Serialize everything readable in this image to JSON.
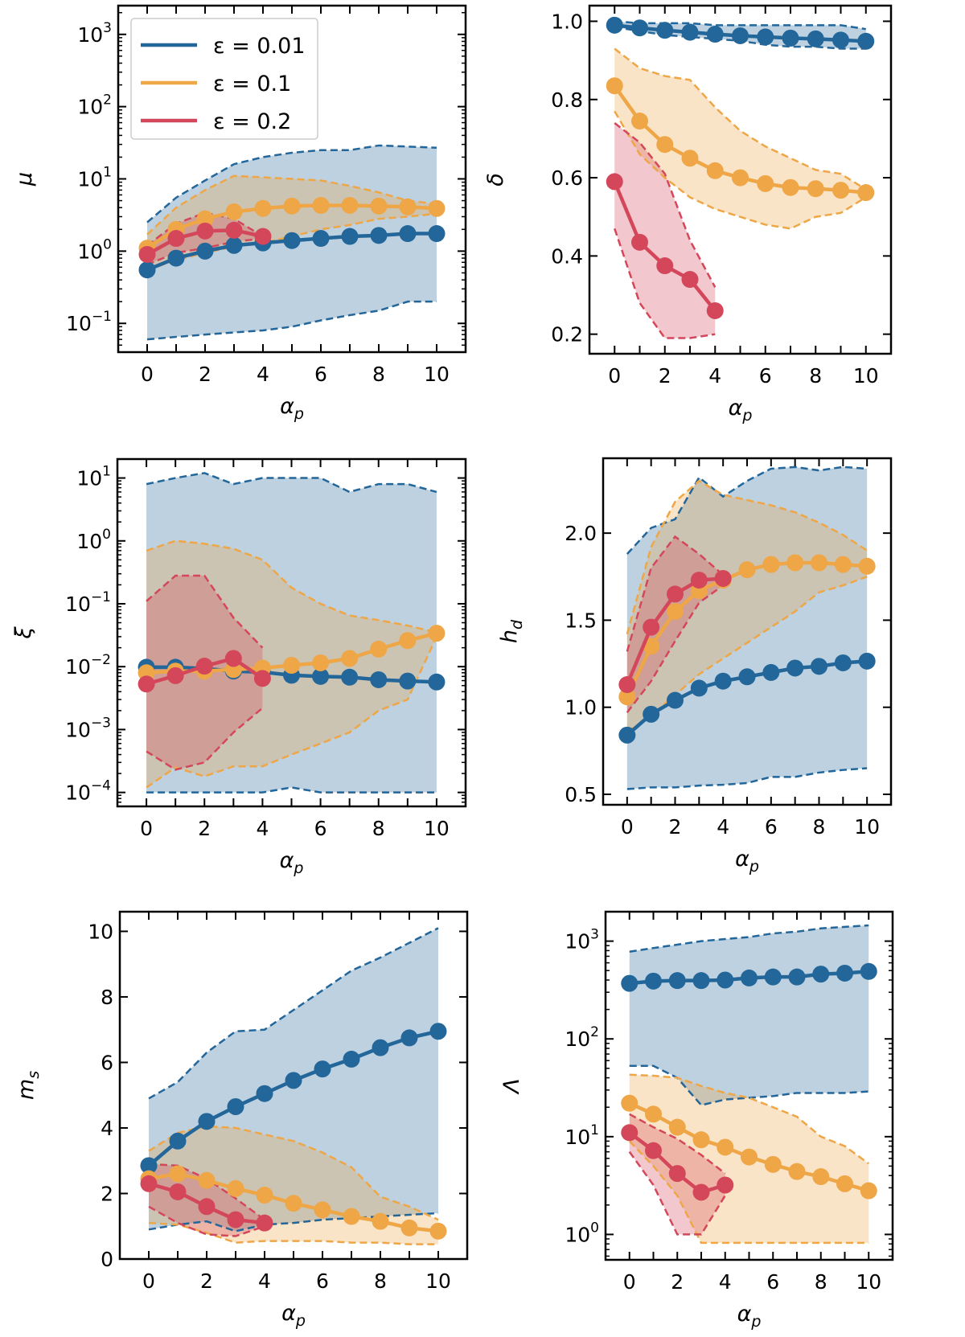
{
  "figure": {
    "series_legend": [
      {
        "label": "ε = 0.01",
        "color": "#23669a"
      },
      {
        "label": "ε = 0.1",
        "color": "#eea646"
      },
      {
        "label": "ε = 0.2",
        "color": "#d4475b"
      }
    ],
    "legend_location": "upper-left of first panel"
  },
  "chart_data": [
    {
      "id": "mu",
      "type": "line",
      "title": "",
      "xlabel": "α_p",
      "ylabel": "μ",
      "yscale": "log",
      "xlim": [
        -1,
        11
      ],
      "ylim": [
        0.04,
        2500
      ],
      "xticks": [
        0,
        2,
        4,
        6,
        8,
        10
      ],
      "xtick_labels": [
        "0",
        "2",
        "4",
        "6",
        "8",
        "10"
      ],
      "yticks": [
        0.1,
        1,
        10,
        100,
        1000
      ],
      "ytick_labels": [
        [
          "10",
          "−1"
        ],
        [
          "10",
          "0"
        ],
        [
          "10",
          "1"
        ],
        [
          "10",
          "2"
        ],
        [
          "10",
          "3"
        ]
      ],
      "grid": false,
      "legend": true,
      "series": [
        {
          "name": "ε = 0.01",
          "x": [
            0,
            1,
            2,
            3,
            4,
            5,
            6,
            7,
            8,
            9,
            10
          ],
          "y": [
            0.55,
            0.8,
            1.0,
            1.2,
            1.3,
            1.4,
            1.5,
            1.6,
            1.65,
            1.75,
            1.75
          ],
          "upper": [
            2.5,
            5.5,
            9.5,
            16,
            20,
            23,
            25,
            25,
            29,
            28,
            27
          ],
          "lower": [
            0.06,
            0.065,
            0.07,
            0.075,
            0.08,
            0.09,
            0.11,
            0.13,
            0.15,
            0.2,
            0.2
          ]
        },
        {
          "name": "ε = 0.1",
          "x": [
            0,
            1,
            2,
            3,
            4,
            5,
            6,
            7,
            8,
            9,
            10
          ],
          "y": [
            1.1,
            2.0,
            2.8,
            3.5,
            3.9,
            4.2,
            4.3,
            4.3,
            4.2,
            4.1,
            3.9
          ],
          "upper": [
            1.7,
            4.0,
            7.0,
            11,
            10.5,
            10,
            9.5,
            8,
            6.5,
            5,
            4.5
          ],
          "lower": [
            0.55,
            0.75,
            0.95,
            1.15,
            1.3,
            1.6,
            2.0,
            2.3,
            2.8,
            3.0,
            3.3
          ]
        },
        {
          "name": "ε = 0.2",
          "x": [
            0,
            1,
            2,
            3,
            4
          ],
          "y": [
            0.9,
            1.5,
            1.9,
            1.95,
            1.6
          ],
          "upper": [
            1.2,
            2.4,
            3.4,
            2.8,
            1.6
          ],
          "lower": [
            0.65,
            0.95,
            1.1,
            1.35,
            1.5
          ]
        }
      ]
    },
    {
      "id": "delta",
      "type": "line",
      "xlabel": "α_p",
      "ylabel": "δ",
      "yscale": "linear",
      "xlim": [
        -1,
        11
      ],
      "ylim": [
        0.15,
        1.04
      ],
      "xticks": [
        0,
        2,
        4,
        6,
        8,
        10
      ],
      "xtick_labels": [
        "0",
        "2",
        "4",
        "6",
        "8",
        "10"
      ],
      "yticks": [
        0.2,
        0.4,
        0.6,
        0.8,
        1.0
      ],
      "ytick_labels": [
        [
          "0.2"
        ],
        [
          "0.4"
        ],
        [
          "0.6"
        ],
        [
          "0.8"
        ],
        [
          "1.0"
        ]
      ],
      "grid": false,
      "legend": false,
      "series": [
        {
          "name": "ε = 0.01",
          "x": [
            0,
            1,
            2,
            3,
            4,
            5,
            6,
            7,
            8,
            9,
            10
          ],
          "y": [
            0.99,
            0.983,
            0.977,
            0.972,
            0.967,
            0.963,
            0.96,
            0.957,
            0.955,
            0.952,
            0.949
          ],
          "upper": [
            1.0,
            0.995,
            0.995,
            0.995,
            0.99,
            0.99,
            0.99,
            0.99,
            0.99,
            0.99,
            0.98
          ],
          "lower": [
            0.985,
            0.975,
            0.965,
            0.96,
            0.955,
            0.95,
            0.94,
            0.935,
            0.935,
            0.93,
            0.93
          ]
        },
        {
          "name": "ε = 0.1",
          "x": [
            0,
            1,
            2,
            3,
            4,
            5,
            6,
            7,
            8,
            9,
            10
          ],
          "y": [
            0.835,
            0.745,
            0.685,
            0.65,
            0.618,
            0.6,
            0.585,
            0.575,
            0.572,
            0.568,
            0.562
          ],
          "upper": [
            0.93,
            0.88,
            0.86,
            0.85,
            0.78,
            0.72,
            0.68,
            0.65,
            0.62,
            0.61,
            0.57
          ],
          "lower": [
            0.77,
            0.66,
            0.6,
            0.55,
            0.52,
            0.5,
            0.48,
            0.47,
            0.5,
            0.51,
            0.55
          ]
        },
        {
          "name": "ε = 0.2",
          "x": [
            0,
            1,
            2,
            3,
            4
          ],
          "y": [
            0.59,
            0.435,
            0.375,
            0.34,
            0.26
          ],
          "upper": [
            0.74,
            0.69,
            0.61,
            0.44,
            0.32
          ],
          "lower": [
            0.47,
            0.28,
            0.19,
            0.19,
            0.2
          ]
        }
      ]
    },
    {
      "id": "xi",
      "type": "line",
      "xlabel": "α_p",
      "ylabel": "ξ",
      "yscale": "log",
      "xlim": [
        -1,
        11
      ],
      "ylim": [
        6e-05,
        20
      ],
      "xticks": [
        0,
        2,
        4,
        6,
        8,
        10
      ],
      "xtick_labels": [
        "0",
        "2",
        "4",
        "6",
        "8",
        "10"
      ],
      "yticks": [
        0.0001,
        0.001,
        0.01,
        0.1,
        1,
        10
      ],
      "ytick_labels": [
        [
          "10",
          "−4"
        ],
        [
          "10",
          "−3"
        ],
        [
          "10",
          "−2"
        ],
        [
          "10",
          "−1"
        ],
        [
          "10",
          "0"
        ],
        [
          "10",
          "1"
        ]
      ],
      "grid": false,
      "legend": false,
      "series": [
        {
          "name": "ε = 0.01",
          "x": [
            0,
            1,
            2,
            3,
            4,
            5,
            6,
            7,
            8,
            9,
            10
          ],
          "y": [
            0.0098,
            0.0098,
            0.0093,
            0.0085,
            0.0082,
            0.0073,
            0.007,
            0.0068,
            0.0062,
            0.0059,
            0.0057
          ],
          "upper": [
            8,
            10,
            12,
            8,
            10,
            10,
            10,
            6,
            8,
            8,
            6
          ],
          "lower": [
            0.0001,
            0.0001,
            0.0001,
            0.0001,
            0.0001,
            0.00012,
            0.0001,
            0.0001,
            0.0001,
            0.0001,
            0.0001
          ]
        },
        {
          "name": "ε = 0.1",
          "x": [
            0,
            1,
            2,
            3,
            4,
            5,
            6,
            7,
            8,
            9,
            10
          ],
          "y": [
            0.008,
            0.0085,
            0.0085,
            0.009,
            0.0095,
            0.0105,
            0.0115,
            0.0135,
            0.019,
            0.026,
            0.034
          ],
          "upper": [
            0.7,
            1.0,
            0.9,
            0.75,
            0.5,
            0.18,
            0.1,
            0.065,
            0.055,
            0.045,
            0.035
          ],
          "lower": [
            0.00012,
            0.00025,
            0.00018,
            0.00026,
            0.00026,
            0.0004,
            0.0006,
            0.0009,
            0.002,
            0.003,
            0.03
          ]
        },
        {
          "name": "ε = 0.2",
          "x": [
            0,
            1,
            2,
            3,
            4
          ],
          "y": [
            0.0053,
            0.0072,
            0.0102,
            0.0135,
            0.0065
          ],
          "upper": [
            0.11,
            0.28,
            0.28,
            0.06,
            0.02
          ],
          "lower": [
            0.00045,
            0.00023,
            0.0003,
            0.0009,
            0.0022
          ]
        }
      ]
    },
    {
      "id": "h_d",
      "type": "line",
      "xlabel": "α_p",
      "ylabel": "h_d",
      "yscale": "linear",
      "xlim": [
        -1,
        11
      ],
      "ylim": [
        0.44,
        2.43
      ],
      "xticks": [
        0,
        2,
        4,
        6,
        8,
        10
      ],
      "xtick_labels": [
        "0",
        "2",
        "4",
        "6",
        "8",
        "10"
      ],
      "yticks": [
        0.5,
        1.0,
        1.5,
        2.0
      ],
      "ytick_labels": [
        [
          "0.5"
        ],
        [
          "1.0"
        ],
        [
          "1.5"
        ],
        [
          "2.0"
        ]
      ],
      "grid": false,
      "legend": false,
      "series": [
        {
          "name": "ε = 0.01",
          "x": [
            0,
            1,
            2,
            3,
            4,
            5,
            6,
            7,
            8,
            9,
            10
          ],
          "y": [
            0.84,
            0.96,
            1.04,
            1.11,
            1.15,
            1.175,
            1.2,
            1.225,
            1.235,
            1.255,
            1.265
          ],
          "upper": [
            1.88,
            2.03,
            2.08,
            2.32,
            2.21,
            2.3,
            2.37,
            2.38,
            2.36,
            2.38,
            2.37
          ],
          "lower": [
            0.53,
            0.54,
            0.54,
            0.55,
            0.555,
            0.565,
            0.6,
            0.6,
            0.625,
            0.64,
            0.65
          ]
        },
        {
          "name": "ε = 0.1",
          "x": [
            0,
            1,
            2,
            3,
            4,
            5,
            6,
            7,
            8,
            9,
            10
          ],
          "y": [
            1.06,
            1.35,
            1.55,
            1.67,
            1.73,
            1.79,
            1.82,
            1.83,
            1.83,
            1.82,
            1.81
          ],
          "upper": [
            1.42,
            1.92,
            2.18,
            2.3,
            2.22,
            2.19,
            2.16,
            2.12,
            2.06,
            1.99,
            1.9
          ],
          "lower": [
            0.86,
            0.95,
            1.07,
            1.19,
            1.28,
            1.37,
            1.46,
            1.55,
            1.66,
            1.7,
            1.75
          ]
        },
        {
          "name": "ε = 0.2",
          "x": [
            0,
            1,
            2,
            3,
            4
          ],
          "y": [
            1.13,
            1.46,
            1.65,
            1.73,
            1.74
          ],
          "upper": [
            1.32,
            1.8,
            1.98,
            1.88,
            1.76
          ],
          "lower": [
            0.97,
            1.15,
            1.38,
            1.6,
            1.7
          ]
        }
      ]
    },
    {
      "id": "m_s",
      "type": "line",
      "xlabel": "α_p",
      "ylabel": "m_s",
      "yscale": "linear",
      "xlim": [
        -1,
        11
      ],
      "ylim": [
        0,
        10.6
      ],
      "xticks": [
        0,
        2,
        4,
        6,
        8,
        10
      ],
      "xtick_labels": [
        "0",
        "2",
        "4",
        "6",
        "8",
        "10"
      ],
      "yticks": [
        0,
        2,
        4,
        6,
        8,
        10
      ],
      "ytick_labels": [
        [
          "0"
        ],
        [
          "2"
        ],
        [
          "4"
        ],
        [
          "6"
        ],
        [
          "8"
        ],
        [
          "10"
        ]
      ],
      "grid": false,
      "legend": false,
      "series": [
        {
          "name": "ε = 0.01",
          "x": [
            0,
            1,
            2,
            3,
            4,
            5,
            6,
            7,
            8,
            9,
            10
          ],
          "y": [
            2.85,
            3.6,
            4.2,
            4.65,
            5.05,
            5.45,
            5.8,
            6.1,
            6.45,
            6.75,
            6.95
          ],
          "upper": [
            4.9,
            5.4,
            6.3,
            6.95,
            7.0,
            7.6,
            8.2,
            8.8,
            9.2,
            9.65,
            10.1
          ],
          "lower": [
            0.9,
            1.05,
            1.15,
            0.85,
            1.05,
            1.1,
            1.2,
            1.25,
            1.3,
            1.35,
            1.4
          ]
        },
        {
          "name": "ε = 0.1",
          "x": [
            0,
            1,
            2,
            3,
            4,
            5,
            6,
            7,
            8,
            9,
            10
          ],
          "y": [
            2.45,
            2.6,
            2.4,
            2.15,
            1.95,
            1.7,
            1.5,
            1.3,
            1.15,
            0.95,
            0.85
          ],
          "upper": [
            3.3,
            3.85,
            4.05,
            4.0,
            3.8,
            3.6,
            3.25,
            2.8,
            1.9,
            1.6,
            1.2
          ],
          "lower": [
            1.1,
            1.05,
            0.8,
            0.5,
            0.55,
            0.55,
            0.55,
            0.5,
            0.5,
            0.45,
            0.45
          ]
        },
        {
          "name": "ε = 0.2",
          "x": [
            0,
            1,
            2,
            3,
            4
          ],
          "y": [
            2.3,
            2.05,
            1.6,
            1.2,
            1.1
          ],
          "upper": [
            2.9,
            2.85,
            2.45,
            1.85,
            1.2
          ],
          "lower": [
            1.6,
            1.1,
            0.75,
            0.7,
            1.0
          ]
        }
      ]
    },
    {
      "id": "Lambda",
      "type": "line",
      "xlabel": "α_p",
      "ylabel": "Λ",
      "yscale": "log",
      "xlim": [
        -1,
        11
      ],
      "ylim": [
        0.55,
        2000
      ],
      "xticks": [
        0,
        2,
        4,
        6,
        8,
        10
      ],
      "xtick_labels": [
        "0",
        "2",
        "4",
        "6",
        "8",
        "10"
      ],
      "yticks": [
        1,
        10,
        100,
        1000
      ],
      "ytick_labels": [
        [
          "10",
          "0"
        ],
        [
          "10",
          "1"
        ],
        [
          "10",
          "2"
        ],
        [
          "10",
          "3"
        ]
      ],
      "grid": false,
      "legend": false,
      "series": [
        {
          "name": "ε = 0.01",
          "x": [
            0,
            1,
            2,
            3,
            4,
            5,
            6,
            7,
            8,
            9,
            10
          ],
          "y": [
            370,
            390,
            395,
            395,
            400,
            420,
            430,
            430,
            460,
            470,
            490
          ],
          "upper": [
            780,
            850,
            920,
            1000,
            1050,
            1100,
            1200,
            1250,
            1350,
            1400,
            1450
          ],
          "lower": [
            53,
            53,
            40,
            21,
            24,
            25,
            26,
            28,
            28,
            28,
            29
          ]
        },
        {
          "name": "ε = 0.1",
          "x": [
            0,
            1,
            2,
            3,
            4,
            5,
            6,
            7,
            8,
            9,
            10
          ],
          "y": [
            22,
            17,
            12.5,
            9.3,
            7.8,
            6.2,
            5.2,
            4.4,
            3.9,
            3.3,
            2.8
          ],
          "upper": [
            43,
            42,
            40,
            33,
            28,
            25,
            20,
            16,
            10,
            8,
            5.3
          ],
          "lower": [
            9,
            5,
            2.5,
            0.82,
            0.82,
            0.82,
            0.82,
            0.82,
            0.82,
            0.82,
            0.82
          ]
        },
        {
          "name": "ε = 0.2",
          "x": [
            0,
            1,
            2,
            3,
            4
          ],
          "y": [
            11,
            7.2,
            4.2,
            2.7,
            3.2
          ],
          "upper": [
            17,
            12.5,
            9.5,
            6.5,
            4.2
          ],
          "lower": [
            7,
            3.2,
            1.0,
            1.0,
            2.5
          ]
        }
      ]
    }
  ]
}
